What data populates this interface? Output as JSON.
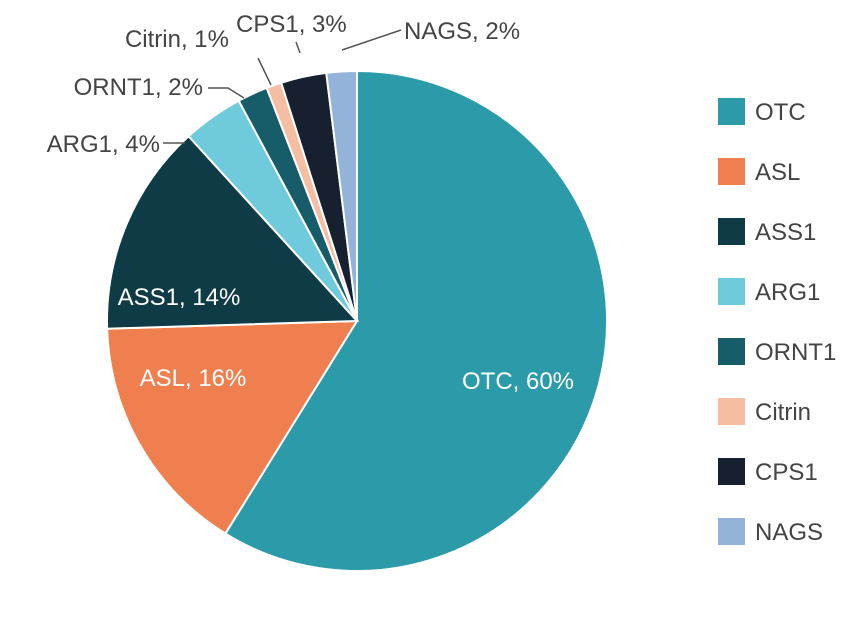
{
  "chart_data": {
    "type": "pie",
    "title": "",
    "slices": [
      {
        "name": "OTC",
        "value": 60,
        "label": "OTC, 60%",
        "color": "#2B9BA9"
      },
      {
        "name": "ASL",
        "value": 16,
        "label": "ASL, 16%",
        "color": "#F07F4F"
      },
      {
        "name": "ASS1",
        "value": 14,
        "label": "ASS1, 14%",
        "color": "#0E3B45"
      },
      {
        "name": "ARG1",
        "value": 4,
        "label": "ARG1, 4%",
        "color": "#6FCBDB"
      },
      {
        "name": "ORNT1",
        "value": 2,
        "label": "ORNT1, 2%",
        "color": "#175C69"
      },
      {
        "name": "Citrin",
        "value": 1,
        "label": "Citrin, 1%",
        "color": "#F5BDA1"
      },
      {
        "name": "CPS1",
        "value": 3,
        "label": "CPS1, 3%",
        "color": "#17202E"
      },
      {
        "name": "NAGS",
        "value": 2,
        "label": "NAGS, 2%",
        "color": "#93B4D8"
      }
    ],
    "legend": {
      "placement": "right",
      "entries": [
        "OTC",
        "ASL",
        "ASS1",
        "ARG1",
        "ORNT1",
        "Citrin",
        "CPS1",
        "NAGS"
      ]
    }
  }
}
